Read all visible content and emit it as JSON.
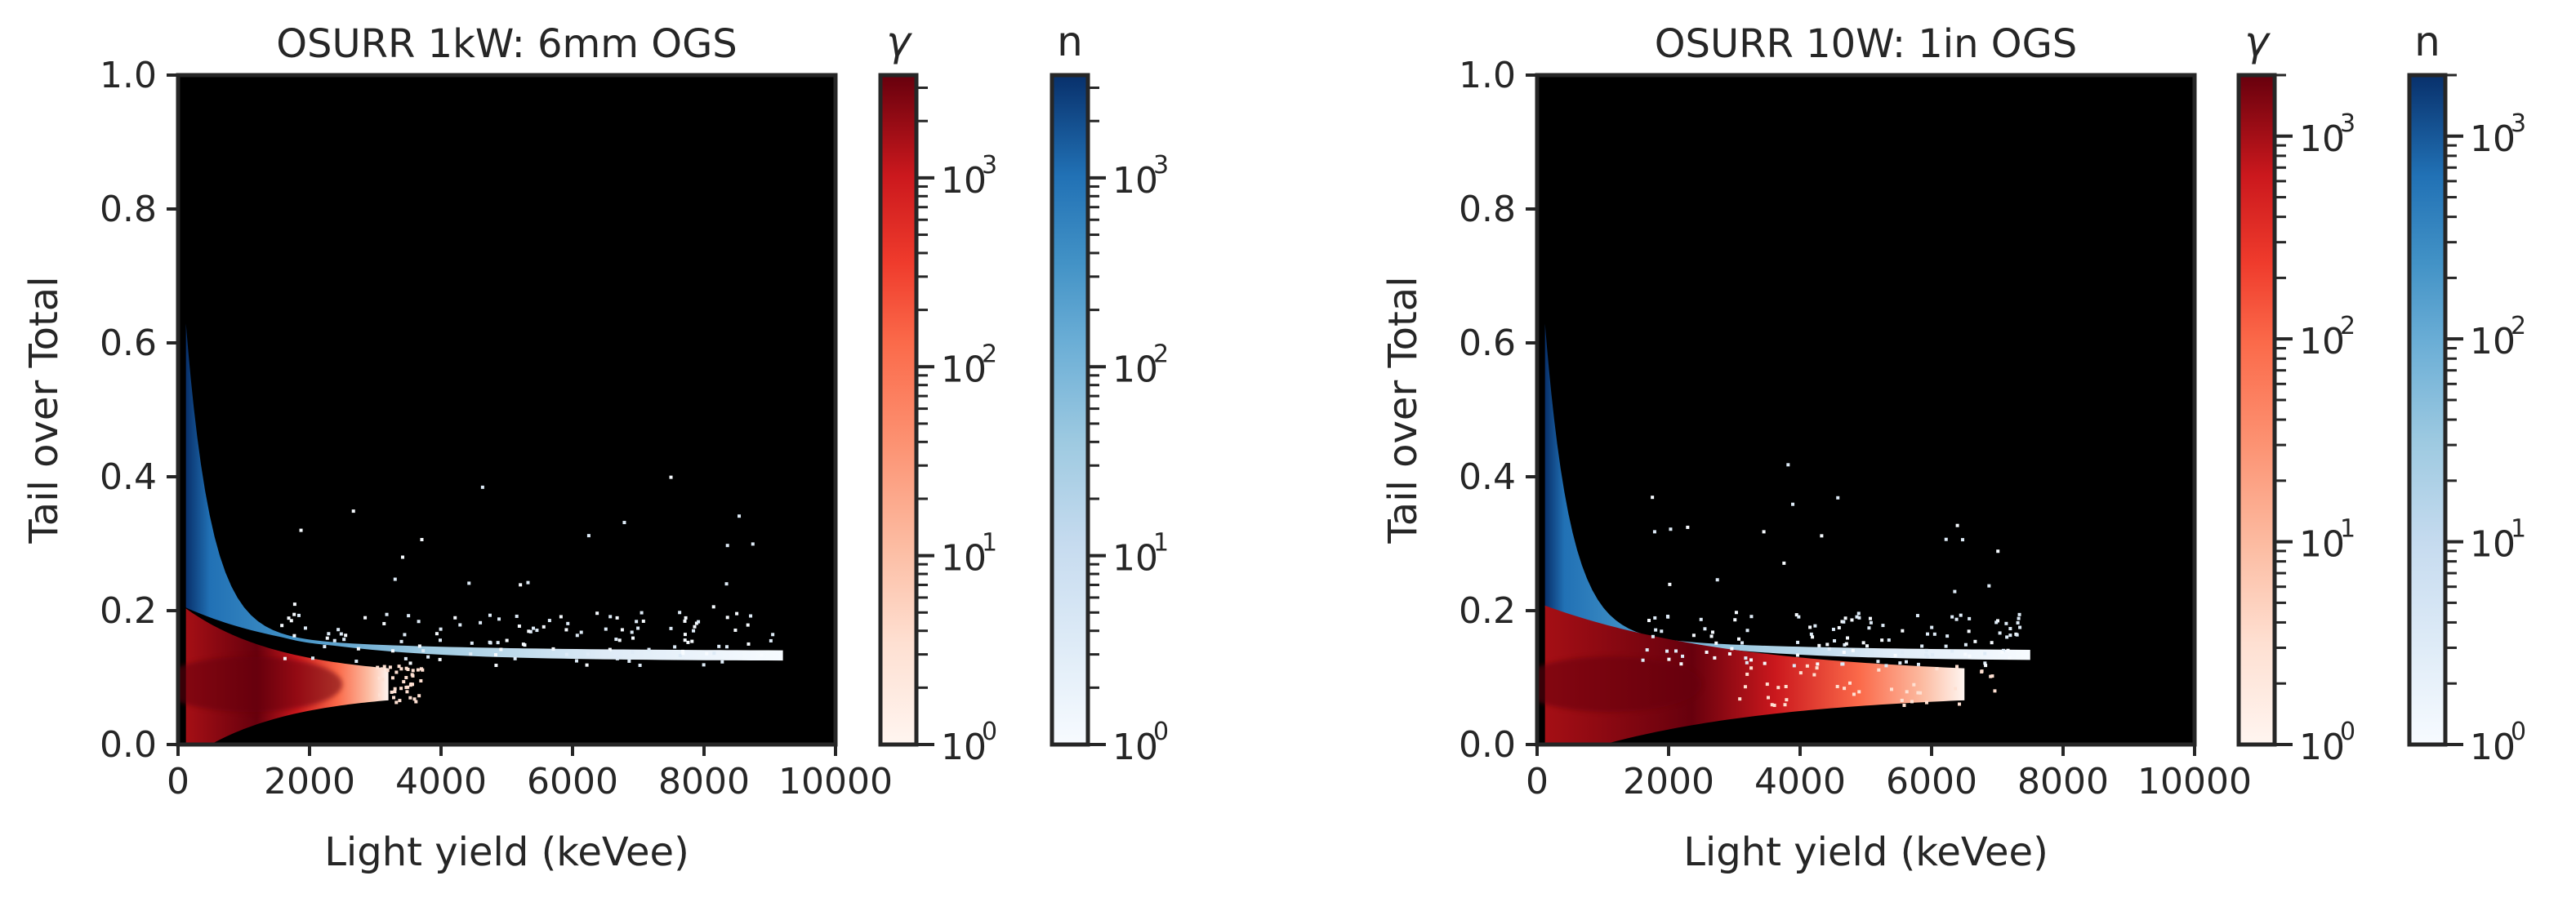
{
  "chart_data": [
    {
      "type": "heatmap",
      "title": "OSURR 1kW: 6mm OGS",
      "xlabel": "Light yield (keVee)",
      "ylabel": "Tail over Total",
      "xlim": [
        0,
        10000
      ],
      "ylim": [
        0.0,
        1.0
      ],
      "xticks": [
        0,
        2000,
        4000,
        6000,
        8000,
        10000
      ],
      "xtick_labels": [
        "0",
        "2000",
        "4000",
        "6000",
        "8000",
        "10000"
      ],
      "yticks": [
        0.0,
        0.2,
        0.4,
        0.6,
        0.8,
        1.0
      ],
      "ytick_labels": [
        "0.0",
        "0.2",
        "0.4",
        "0.6",
        "0.8",
        "1.0"
      ],
      "background": "#000000",
      "series": [
        {
          "name": "γ",
          "colormap": "Reds",
          "band": "lower",
          "centre_psd": 0.09,
          "edge_psd": 0.2,
          "max_light": 3200
        },
        {
          "name": "n",
          "colormap": "Blues",
          "band": "upper",
          "peak_psd": 0.6,
          "max_light": 9200
        }
      ],
      "colorbars": [
        {
          "label": "γ",
          "cmap": "Reds",
          "scale": "log",
          "max": 3500,
          "ticks": [
            1,
            10,
            100,
            1000
          ],
          "tick_base": "10",
          "tick_exps": [
            "0",
            "1",
            "2",
            "3"
          ]
        },
        {
          "label": "n",
          "cmap": "Blues",
          "scale": "log",
          "max": 3500,
          "ticks": [
            1,
            10,
            100,
            1000
          ],
          "tick_base": "10",
          "tick_exps": [
            "0",
            "1",
            "2",
            "3"
          ]
        }
      ]
    },
    {
      "type": "heatmap",
      "title": "OSURR 10W: 1in OGS",
      "xlabel": "Light yield (keVee)",
      "ylabel": "Tail over Total",
      "xlim": [
        0,
        10000
      ],
      "ylim": [
        0.0,
        1.0
      ],
      "xticks": [
        0,
        2000,
        4000,
        6000,
        8000,
        10000
      ],
      "xtick_labels": [
        "0",
        "2000",
        "4000",
        "6000",
        "8000",
        "10000"
      ],
      "yticks": [
        0.0,
        0.2,
        0.4,
        0.6,
        0.8,
        1.0
      ],
      "ytick_labels": [
        "0.0",
        "0.2",
        "0.4",
        "0.6",
        "0.8",
        "1.0"
      ],
      "background": "#000000",
      "series": [
        {
          "name": "γ",
          "colormap": "Reds",
          "band": "lower",
          "centre_psd": 0.09,
          "edge_psd": 0.2,
          "max_light": 6500
        },
        {
          "name": "n",
          "colormap": "Blues",
          "band": "upper",
          "peak_psd": 0.6,
          "max_light": 7500
        }
      ],
      "colorbars": [
        {
          "label": "γ",
          "cmap": "Reds",
          "scale": "log",
          "max": 2000,
          "ticks": [
            1,
            10,
            100,
            1000
          ],
          "tick_base": "10",
          "tick_exps": [
            "0",
            "1",
            "2",
            "3"
          ]
        },
        {
          "label": "n",
          "cmap": "Blues",
          "scale": "log",
          "max": 2000,
          "ticks": [
            1,
            10,
            100,
            1000
          ],
          "tick_base": "10",
          "tick_exps": [
            "0",
            "1",
            "2",
            "3"
          ]
        }
      ]
    }
  ]
}
